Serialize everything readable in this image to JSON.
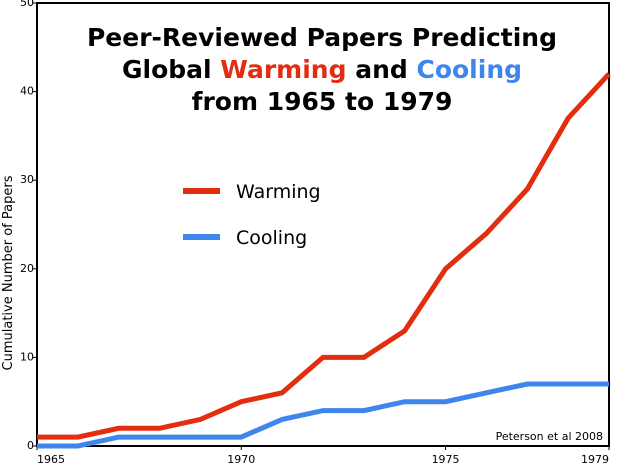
{
  "chart_data": {
    "type": "line",
    "title": {
      "line1": "Peer-Reviewed Papers Predicting",
      "line2_prefix": "Global ",
      "line2_warm": "Warming",
      "line2_mid": " and ",
      "line2_cool": "Cooling",
      "line3": "from 1965 to 1979"
    },
    "xlabel": "",
    "ylabel": "Cumulative Number of Papers",
    "xlim": [
      1965,
      1979
    ],
    "ylim": [
      0,
      50
    ],
    "x_ticks": [
      1965,
      1970,
      1975,
      1979
    ],
    "y_ticks": [
      0,
      10,
      20,
      30,
      40,
      50
    ],
    "x": [
      1965,
      1966,
      1967,
      1968,
      1969,
      1970,
      1971,
      1972,
      1973,
      1974,
      1975,
      1976,
      1977,
      1978,
      1979
    ],
    "series": [
      {
        "name": "Warming",
        "color": "#e22d0f",
        "values": [
          1,
          1,
          2,
          2,
          3,
          5,
          6,
          10,
          10,
          13,
          20,
          24,
          29,
          37,
          42
        ]
      },
      {
        "name": "Cooling",
        "color": "#3f85ee",
        "values": [
          0,
          0,
          1,
          1,
          1,
          1,
          3,
          4,
          4,
          5,
          5,
          6,
          7,
          7,
          7
        ]
      }
    ],
    "legend_position": "center-left",
    "grid": false,
    "annotation": "Peterson et al 2008"
  }
}
